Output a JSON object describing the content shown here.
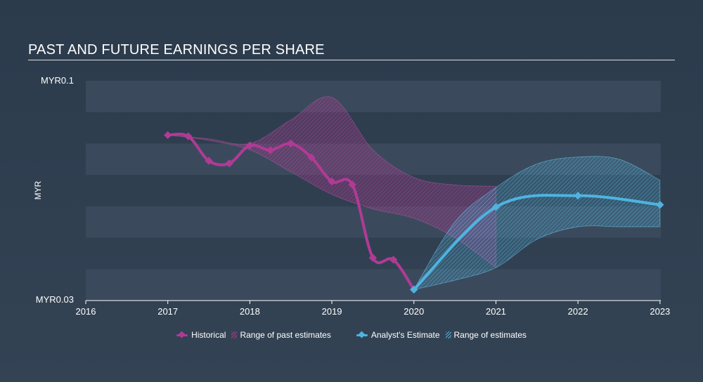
{
  "title": "PAST AND FUTURE EARNINGS PER SHARE",
  "colors": {
    "historical": "#b13a95",
    "estimate": "#4fb3e0",
    "grid_band": "#3a4a5c"
  },
  "legend": {
    "historical": "Historical",
    "past_range": "Range of past estimates",
    "estimate": "Analyst's Estimate",
    "est_range": "Range of estimates"
  },
  "chart_data": {
    "type": "line",
    "ylabel": "MYR",
    "y_tick_labels": [
      "MYR0.1",
      "MYR0.03"
    ],
    "ylim": [
      0.03,
      0.1
    ],
    "xlim": [
      2016,
      2023.01
    ],
    "x_tick_labels": [
      "2016",
      "2017",
      "2018",
      "2019",
      "2020",
      "2021",
      "2022",
      "2023"
    ],
    "x_ticks": [
      2016,
      2017,
      2018,
      2019,
      2020,
      2021,
      2022,
      2023
    ],
    "series": [
      {
        "name": "Historical",
        "x": [
          2017.0,
          2017.25,
          2017.5,
          2017.75,
          2018.0,
          2018.25,
          2018.5,
          2018.75,
          2019.0,
          2019.25,
          2019.5,
          2019.75,
          2020.0
        ],
        "y": [
          0.0827,
          0.0823,
          0.0745,
          0.0737,
          0.0794,
          0.0779,
          0.08,
          0.0756,
          0.0679,
          0.0669,
          0.0436,
          0.043,
          0.0335
        ]
      },
      {
        "name": "Analyst's Estimate",
        "x": [
          2020.0,
          2021.0,
          2022.0,
          2023.0
        ],
        "y": [
          0.0335,
          0.0598,
          0.0634,
          0.0605
        ]
      }
    ],
    "range_past": {
      "name": "Range of past estimates",
      "x": [
        2017.0,
        2017.5,
        2018.0,
        2018.5,
        2019.0,
        2019.5,
        2020.0,
        2020.5,
        2021.0
      ],
      "upper": [
        0.0827,
        0.0815,
        0.08,
        0.0875,
        0.0947,
        0.078,
        0.0692,
        0.0668,
        0.0664
      ],
      "lower": [
        0.0827,
        0.081,
        0.078,
        0.071,
        0.0638,
        0.0592,
        0.0562,
        0.05,
        0.0405
      ]
    },
    "range_future": {
      "name": "Range of estimates",
      "x": [
        2020.0,
        2020.5,
        2021.0,
        2021.5,
        2022.0,
        2022.5,
        2023.0
      ],
      "upper": [
        0.0335,
        0.055,
        0.066,
        0.0735,
        0.0757,
        0.075,
        0.0683
      ],
      "lower": [
        0.0335,
        0.0365,
        0.0405,
        0.0495,
        0.0535,
        0.0535,
        0.0535
      ]
    }
  }
}
